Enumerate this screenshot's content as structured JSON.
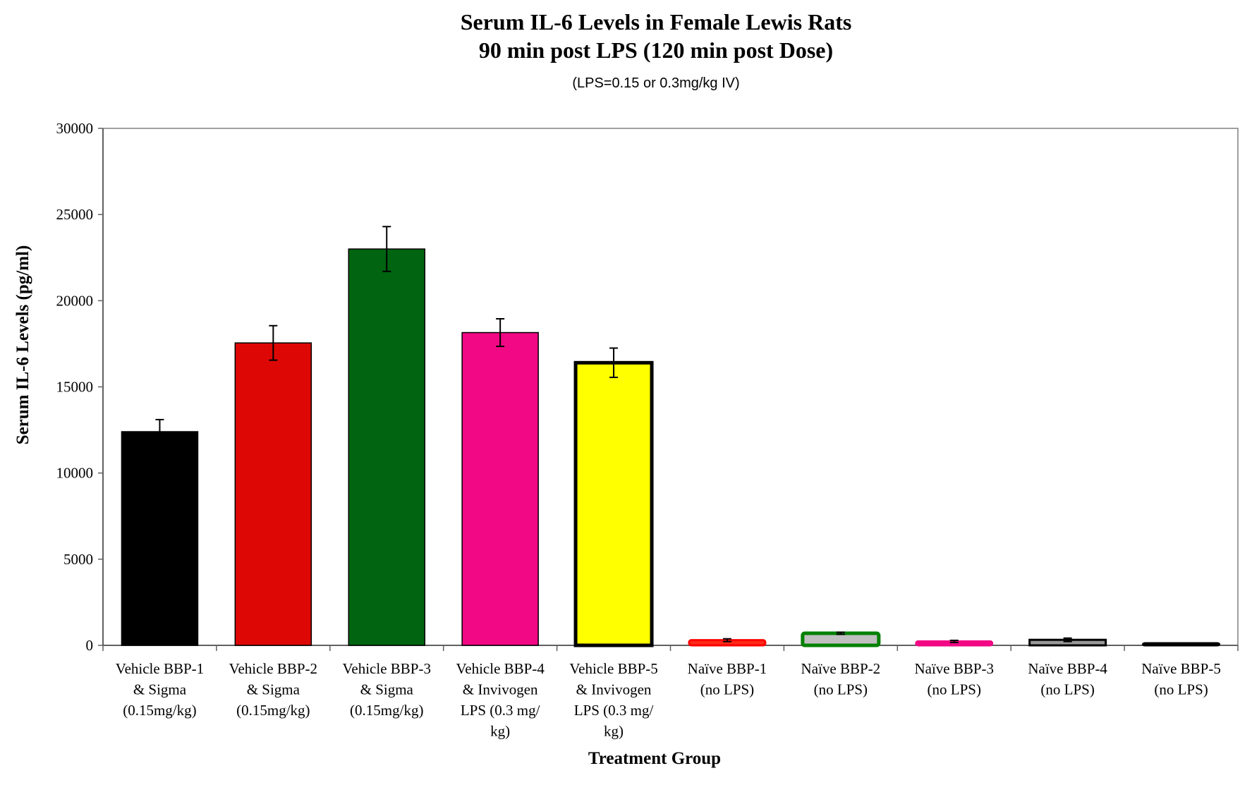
{
  "chart_data": {
    "type": "bar",
    "title": [
      "Serum IL-6 Levels in Female Lewis Rats",
      "90 min post LPS (120 min post Dose)"
    ],
    "subtitle": "(LPS=0.15 or 0.3mg/kg IV)",
    "xlabel": "Treatment Group",
    "ylabel": "Serum IL-6 Levels (pg/ml)",
    "ylim": [
      0,
      30000
    ],
    "yticks": [
      "0",
      "5000",
      "10000",
      "15000",
      "20000",
      "25000",
      "30000"
    ],
    "grid": false,
    "categories": [
      [
        "Vehicle BBP-1",
        "& Sigma",
        "(0.15mg/kg)"
      ],
      [
        "Vehicle BBP-2",
        "& Sigma",
        "(0.15mg/kg)"
      ],
      [
        "Vehicle BBP-3",
        "& Sigma",
        "(0.15mg/kg)"
      ],
      [
        "Vehicle BBP-4",
        "& Invivogen",
        "LPS (0.3 mg/",
        "kg)"
      ],
      [
        "Vehicle BBP-5",
        "& Invivogen",
        "LPS (0.3 mg/",
        "kg)"
      ],
      [
        "Naïve BBP-1",
        "(no LPS)"
      ],
      [
        "Naïve BBP-2",
        "(no LPS)"
      ],
      [
        "Naïve BBP-3",
        "(no LPS)"
      ],
      [
        "Naïve BBP-4",
        "(no LPS)"
      ],
      [
        "Naïve BBP-5",
        "(no LPS)"
      ]
    ],
    "values": [
      12400,
      17550,
      23000,
      18150,
      16400,
      300,
      700,
      230,
      320,
      50
    ],
    "errors": [
      700,
      1000,
      1300,
      800,
      850,
      80,
      60,
      60,
      100,
      10
    ],
    "fill_colors": [
      "#000000",
      "#dd0806",
      "#006411",
      "#f20884",
      "#ffff00",
      "#ff2a1a",
      "#c0c0c0",
      "#f20884",
      "#999999",
      "#000000"
    ],
    "edge_colors": [
      "#000000",
      "#000000",
      "#000000",
      "#000000",
      "#000000",
      "#ff0000",
      "#008000",
      "#f20884",
      "#000000",
      "#000000"
    ]
  }
}
